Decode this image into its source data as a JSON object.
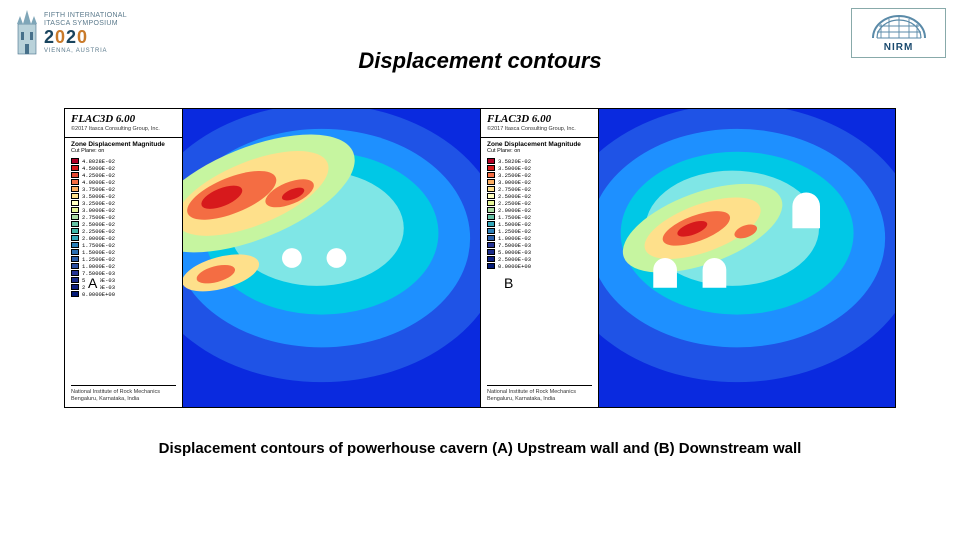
{
  "title": "Displacement contours",
  "caption": "Displacement contours of powerhouse cavern (A) Upstream wall and (B) Downstream wall",
  "logos": {
    "left": {
      "line1": "FIFTH INTERNATIONAL",
      "line2": "ITASCA SYMPOSIUM",
      "year_html": "2020",
      "sub": "VIENNA, AUSTRIA"
    },
    "right": {
      "text": "NIRM"
    }
  },
  "panels": [
    {
      "letter": "A",
      "software": "FLAC3D 6.00",
      "copyright": "©2017 Itasca Consulting Group, Inc.",
      "legend_title": "Zone Displacement Magnitude",
      "legend_sub": "Cut Plane: on",
      "institute_l1": "National Institute of Rock Mechanics",
      "institute_l2": "Bengaluru, Karnataka, India",
      "values": [
        "4.8028E-02",
        "4.5000E-02",
        "4.2500E-02",
        "4.0000E-02",
        "3.7500E-02",
        "3.5000E-02",
        "3.2500E-02",
        "3.0000E-02",
        "2.7500E-02",
        "2.5000E-02",
        "2.2500E-02",
        "2.0000E-02",
        "1.7500E-02",
        "1.5000E-02",
        "1.2500E-02",
        "1.0000E-02",
        "7.5000E-03",
        "5.0000E-03",
        "2.5000E-03",
        "0.0000E+00"
      ],
      "colors": [
        "#b10026",
        "#d7191c",
        "#e34a33",
        "#f46d43",
        "#fdae61",
        "#fee08b",
        "#ffffbf",
        "#e6f598",
        "#abdda4",
        "#66c2a5",
        "#3fb6a8",
        "#33a6b8",
        "#2c7fb8",
        "#2b6eb0",
        "#2a5da8",
        "#2a4ea0",
        "#253494",
        "#1a2b8a",
        "#0f2080",
        "#041a76"
      ],
      "plot": {
        "background": "#0a2adf",
        "far": "#1f53e6",
        "mid": "#1e90ff",
        "near": "#00c8e6",
        "inner": "#7fe6e6",
        "hot_outer": "#c6f5a0",
        "hot_mid": "#fee08b",
        "hot_in": "#f46d43",
        "hot_core": "#d7191c",
        "feature_fill": "#ffffff"
      }
    },
    {
      "letter": "B",
      "software": "FLAC3D 6.00",
      "copyright": "©2017 Itasca Consulting Group, Inc.",
      "legend_title": "Zone Displacement Magnitude",
      "legend_sub": "Cut Plane: on",
      "institute_l1": "National Institute of Rock Mechanics",
      "institute_l2": "Bengaluru, Karnataka, India",
      "values": [
        "3.5820E-02",
        "3.5000E-02",
        "3.2500E-02",
        "3.0000E-02",
        "2.7500E-02",
        "2.5000E-02",
        "2.2500E-02",
        "2.0000E-02",
        "1.7500E-02",
        "1.5000E-02",
        "1.2500E-02",
        "1.0000E-02",
        "7.5000E-03",
        "5.0000E-03",
        "2.5000E-03",
        "0.0000E+00"
      ],
      "colors": [
        "#b10026",
        "#d7191c",
        "#f46d43",
        "#fdae61",
        "#fee08b",
        "#ffffbf",
        "#e6f598",
        "#abdda4",
        "#66c2a5",
        "#33a6b8",
        "#2c7fb8",
        "#2a5da8",
        "#253494",
        "#1a2b8a",
        "#0f2080",
        "#041a76"
      ],
      "plot": {
        "background": "#0a2adf",
        "far": "#1f53e6",
        "mid": "#1e90ff",
        "near": "#00c8e6",
        "inner": "#7fe6e6",
        "hot_outer": "#c6f5a0",
        "hot_mid": "#fee08b",
        "hot_in": "#f46d43",
        "hot_core": "#d7191c",
        "feature_fill": "#ffffff"
      }
    }
  ]
}
